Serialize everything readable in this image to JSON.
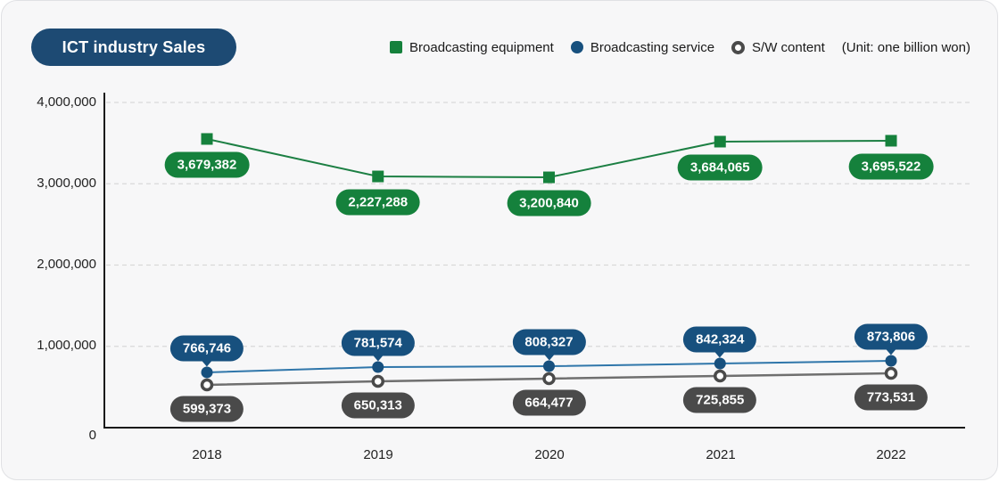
{
  "card": {
    "title": "ICT industry Sales",
    "unit_label": "(Unit: one billion won)"
  },
  "colors": {
    "title_pill_bg": "#1d4a73",
    "card_bg": "#f7f7f8",
    "axis": "#1a1a1a",
    "grid": "#d9d9d9"
  },
  "chart_data": {
    "type": "line",
    "title": "ICT industry Sales",
    "unit": "one billion won",
    "categories": [
      "2018",
      "2019",
      "2020",
      "2021",
      "2022"
    ],
    "y_ticks": [
      "4,000,000",
      "3,000,000",
      "2,000,000",
      "1,000,000",
      "0"
    ],
    "ylim": [
      0,
      4000000
    ],
    "grid": "horizontal-dashed",
    "legend_position": "top-right",
    "series": [
      {
        "name": "Broadcasting equipment",
        "marker": "square",
        "color": "#15813c",
        "line_color": "#1c7f43",
        "values": [
          3679382,
          2227288,
          3200840,
          3684065,
          3695522
        ],
        "labels": [
          "3,679,382",
          "2,227,288",
          "3,200,840",
          "3,684,065",
          "3,695,522"
        ],
        "plot_values": [
          3551000,
          3090000,
          3079000,
          3518000,
          3529000
        ],
        "label_position": "below",
        "label_tail": false
      },
      {
        "name": "Broadcasting service",
        "marker": "circle",
        "color": "#17507e",
        "line_color": "#2f76aa",
        "values": [
          766746,
          781574,
          808327,
          842324,
          873806
        ],
        "labels": [
          "766,746",
          "781,574",
          "808,327",
          "842,324",
          "873,806"
        ],
        "plot_values": [
          680000,
          745000,
          756000,
          789000,
          822000
        ],
        "label_position": "above",
        "label_tail": true
      },
      {
        "name": "S/W content",
        "marker": "ring",
        "color": "#4a4a4a",
        "line_color": "#6f6f6f",
        "values": [
          599373,
          650313,
          664477,
          725855,
          773531
        ],
        "labels": [
          "599,373",
          "650,313",
          "664,477",
          "725,855",
          "773,531"
        ],
        "plot_values": [
          526000,
          570000,
          603000,
          636000,
          668000
        ],
        "label_position": "below",
        "label_tail": false
      }
    ]
  }
}
